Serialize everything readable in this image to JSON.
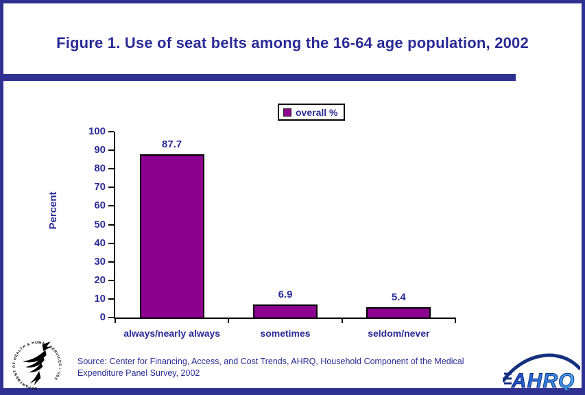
{
  "title": "Figure 1. Use of seat belts among the 16-64 age population, 2002",
  "legend": {
    "label": "overall %"
  },
  "chart_data": {
    "type": "bar",
    "title": "Figure 1. Use of seat belts among the 16-64 age population, 2002",
    "categories": [
      "always/nearly always",
      "sometimes",
      "seldom/never"
    ],
    "values": [
      87.7,
      6.9,
      5.4
    ],
    "series": [
      {
        "name": "overall %",
        "values": [
          87.7,
          6.9,
          5.4
        ]
      }
    ],
    "xlabel": "",
    "ylabel": "Percent",
    "ylim": [
      0,
      100
    ],
    "ytick_step": 10,
    "grid": false,
    "legend_position": "top-center",
    "bar_color": "#8C008F"
  },
  "source": {
    "line1": "Source: Center for Financing, Access, and Cost Trends, AHRQ, Household Component of the Medical",
    "line2": "Expenditure Panel Survey, 2002"
  },
  "logos": {
    "hhs_ring_text": "DEPARTMENT OF HEALTH & HUMAN SERVICES • USA",
    "ahrq_text": "AHRQ"
  },
  "colors": {
    "navy_text": "#2B2B96",
    "navy_accent": "#2E3192",
    "purple": "#8C008F",
    "axis_black": "#000000",
    "ahrq_dark": "#16307F",
    "ahrq_blue_start": "#1C45C4",
    "ahrq_blue_end": "#47A9F4",
    "background": "#FFFFFF"
  }
}
